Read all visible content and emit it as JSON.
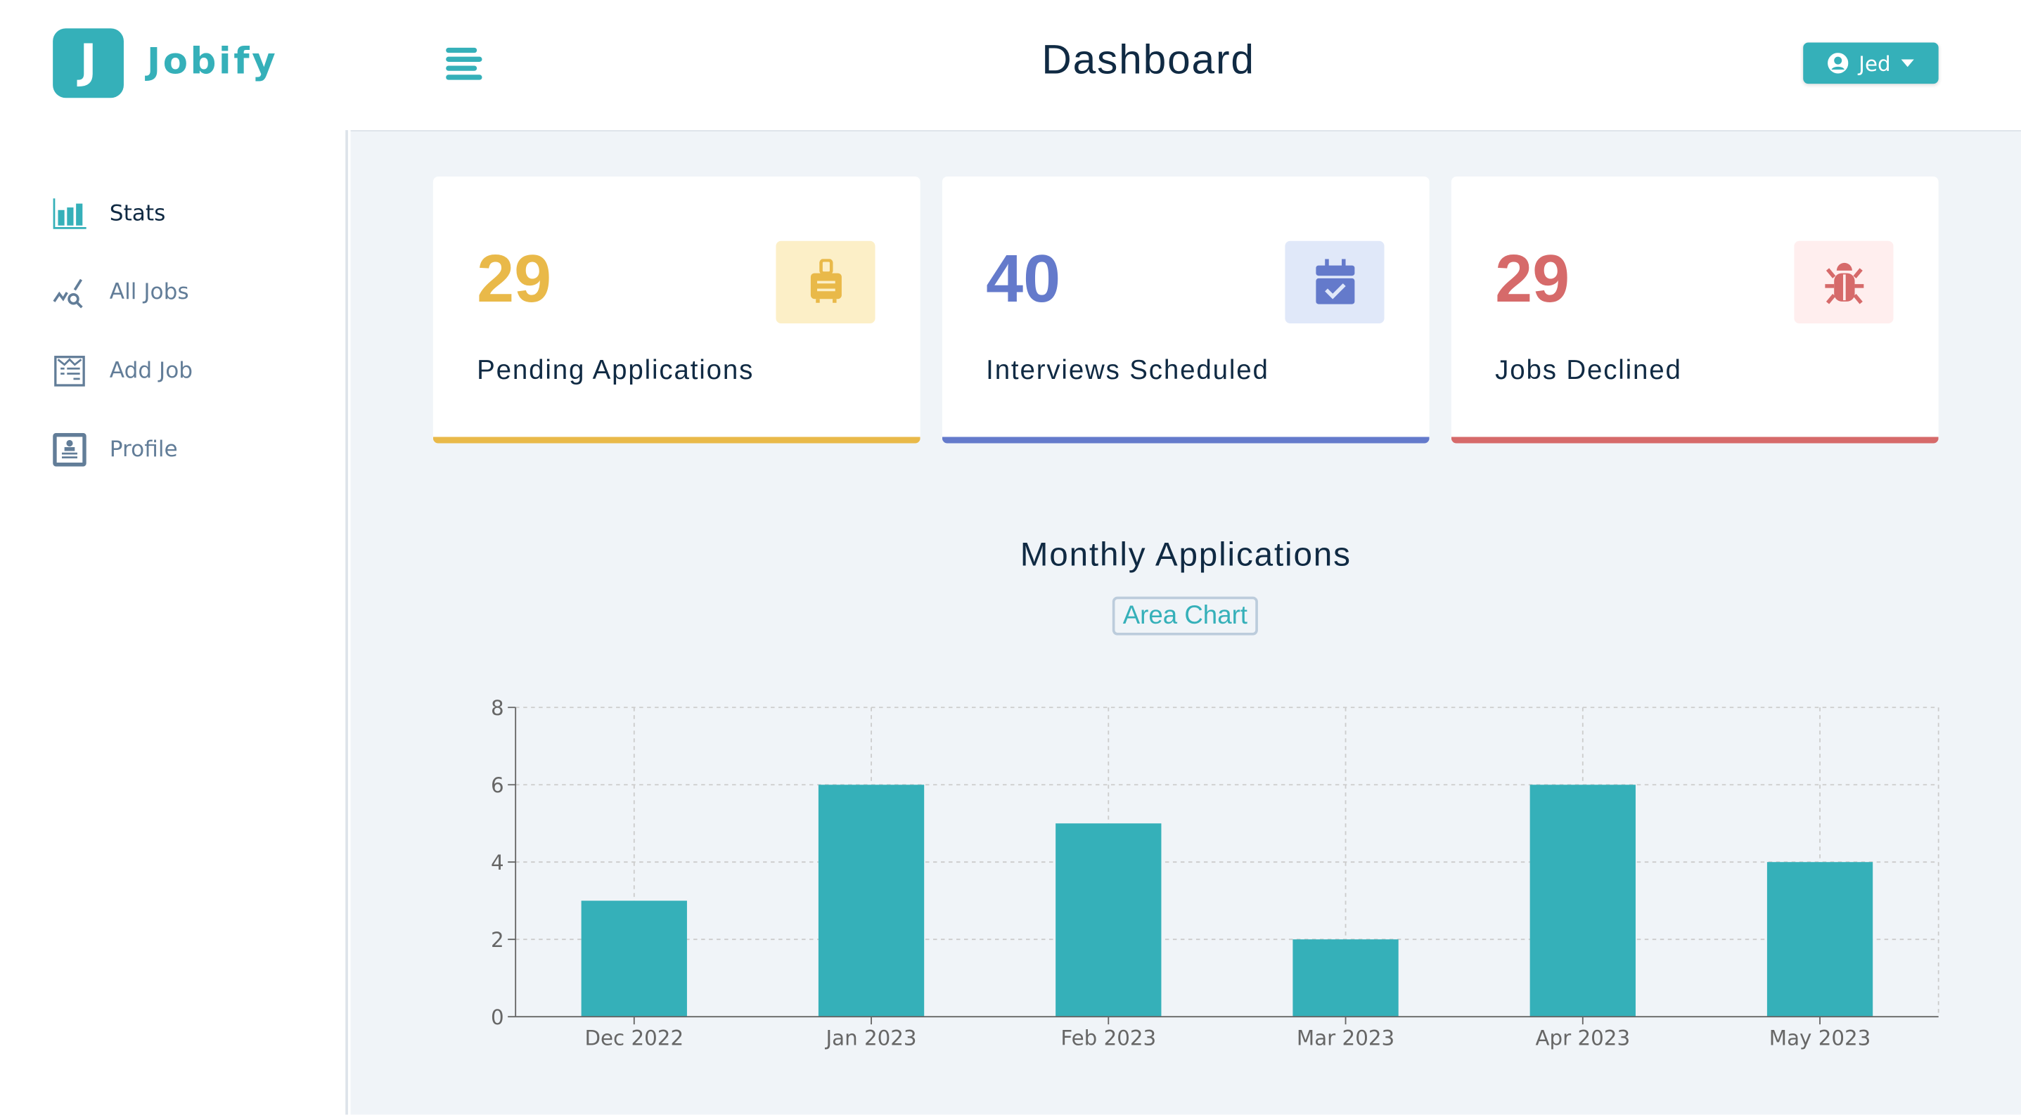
{
  "header": {
    "brand": "Jobify",
    "logo_letter": "J",
    "title": "Dashboard",
    "user": "Jed"
  },
  "sidebar": {
    "items": [
      {
        "label": "Stats",
        "active": true
      },
      {
        "label": "All Jobs"
      },
      {
        "label": "Add Job"
      },
      {
        "label": "Profile"
      }
    ]
  },
  "stats": [
    {
      "value": "29",
      "label": "Pending Applications",
      "color": "#e9b949",
      "bg": "#fcefc7",
      "icon": "suitcase-icon"
    },
    {
      "value": "40",
      "label": "Interviews Scheduled",
      "color": "#647acb",
      "bg": "#e0e8f9",
      "icon": "calendar-check-icon"
    },
    {
      "value": "29",
      "label": "Jobs Declined",
      "color": "#d66a6a",
      "bg": "#ffeeee",
      "icon": "bug-icon"
    }
  ],
  "chart_title": "Monthly Applications",
  "chart_toggle": "Area Chart",
  "chart_data": {
    "type": "bar",
    "title": "Monthly Applications",
    "categories": [
      "Dec 2022",
      "Jan 2023",
      "Feb 2023",
      "Mar 2023",
      "Apr 2023",
      "May 2023"
    ],
    "values": [
      3,
      6,
      5,
      2,
      6,
      4
    ],
    "ylim": [
      0,
      8
    ],
    "yticks": [
      0,
      2,
      4,
      6,
      8
    ],
    "grid": true,
    "color": "#35b0b9"
  }
}
